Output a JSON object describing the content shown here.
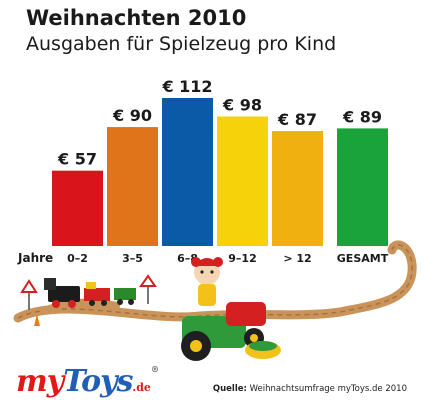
{
  "header": {
    "title": "Weihnachten 2010",
    "subtitle": "Ausgaben für Spielzeug pro Kind"
  },
  "chart_data": {
    "type": "bar",
    "x_axis_prefix": "Jahre",
    "categories": [
      "0–2",
      "3–5",
      "6–8",
      "9–12",
      "> 12",
      "GESAMT"
    ],
    "values": [
      57,
      90,
      112,
      98,
      87,
      89
    ],
    "value_labels": [
      "€ 57",
      "€ 90",
      "€ 112",
      "€ 98",
      "€ 87",
      "€ 89"
    ],
    "currency": "€",
    "colors": [
      "#d9141b",
      "#e0741a",
      "#0b5aa8",
      "#f5d20a",
      "#f0b00f",
      "#1aa33a"
    ],
    "ylim": [
      0,
      112
    ],
    "grid": false
  },
  "footer": {
    "source_label": "Quelle:",
    "source_text": "Weihnachtsumfrage myToys.de 2010"
  },
  "logo": {
    "my": "my",
    "toys": "Toys",
    "domain": ".de",
    "registered": "®"
  }
}
